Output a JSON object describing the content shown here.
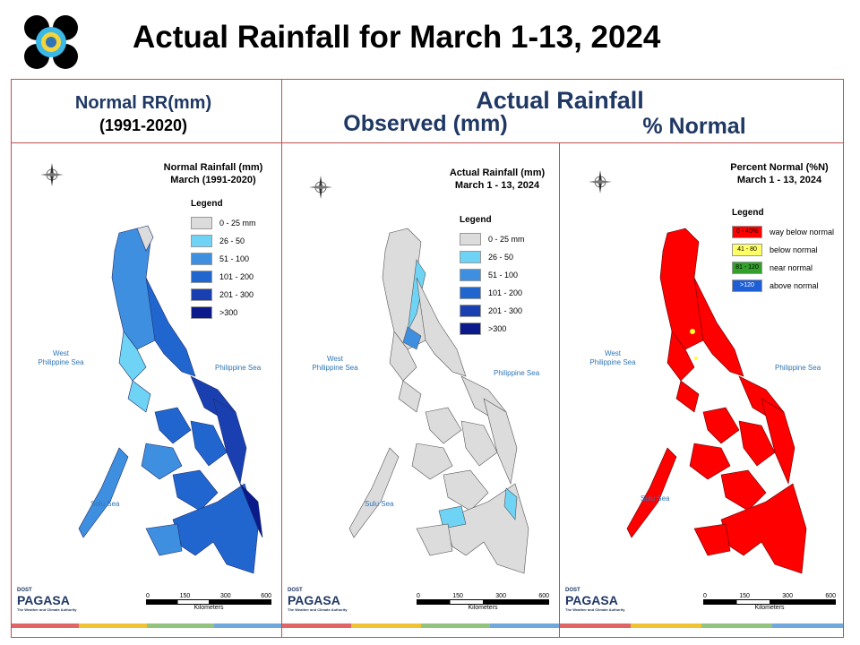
{
  "title": "Actual Rainfall for March 1-13, 2024",
  "header": {
    "normal_line1": "Normal RR(mm)",
    "normal_line2": "(1991-2020)",
    "actual": "Actual Rainfall",
    "observed": "Observed (mm)",
    "pct_normal": "% Normal"
  },
  "maps": [
    {
      "title_line1": "Normal Rainfall (mm)",
      "title_line2": "March (1991-2020)",
      "legend_title": "Legend",
      "legend": [
        {
          "label": "0 - 25 mm",
          "color": "#dcdcdc"
        },
        {
          "label": "26 - 50",
          "color": "#6fd3f5"
        },
        {
          "label": "51 - 100",
          "color": "#3f8fe0"
        },
        {
          "label": "101 - 200",
          "color": "#2166cf"
        },
        {
          "label": "201 - 300",
          "color": "#1a3fb0"
        },
        {
          "label": ">300",
          "color": "#0a1a8a"
        }
      ]
    },
    {
      "title_line1": "Actual Rainfall (mm)",
      "title_line2": "March 1 - 13, 2024",
      "legend_title": "Legend",
      "legend": [
        {
          "label": "0 - 25 mm",
          "color": "#dcdcdc"
        },
        {
          "label": "26 - 50",
          "color": "#6fd3f5"
        },
        {
          "label": "51 - 100",
          "color": "#3f8fe0"
        },
        {
          "label": "101 - 200",
          "color": "#2166cf"
        },
        {
          "label": "201 - 300",
          "color": "#1a3fb0"
        },
        {
          "label": ">300",
          "color": "#0a1a8a"
        }
      ]
    },
    {
      "title_line1": "Percent Normal (%N)",
      "title_line2": "March 1 - 13, 2024",
      "legend_title": "Legend",
      "legend": [
        {
          "code": "0 - 40%",
          "label": "way below normal",
          "color": "#ff0000"
        },
        {
          "code": "41 - 80",
          "label": "below normal",
          "color": "#ffff66"
        },
        {
          "code": "81 - 120",
          "label": "near normal",
          "color": "#33a02c"
        },
        {
          "code": ">120",
          "label": "above normal",
          "color": "#1f5fd6"
        }
      ]
    }
  ],
  "seas": {
    "west_line1": "West",
    "west_line2": "Philippine Sea",
    "philippine_sea": "Philippine Sea",
    "sulu_sea": "Sulu Sea"
  },
  "compass": {
    "n": "N",
    "s": "S",
    "e": "E",
    "w": "W"
  },
  "scale": {
    "ticks": [
      "0",
      "150",
      "300",
      "600"
    ],
    "unit": "Kilometers"
  },
  "logo": {
    "text": "PAGASA",
    "tagline": "The Weather and Climate Authority",
    "brand": "DOST"
  },
  "map_colors": {
    "normal_fill": "#2f6fd6",
    "normal_light": "#6fc3f0",
    "normal_dark": "#1a3fb0",
    "actual_fill": "#dcdcdc",
    "actual_light": "#6fc9f2",
    "pct_fill": "#ff0000",
    "pct_yellow": "#ffff33"
  }
}
